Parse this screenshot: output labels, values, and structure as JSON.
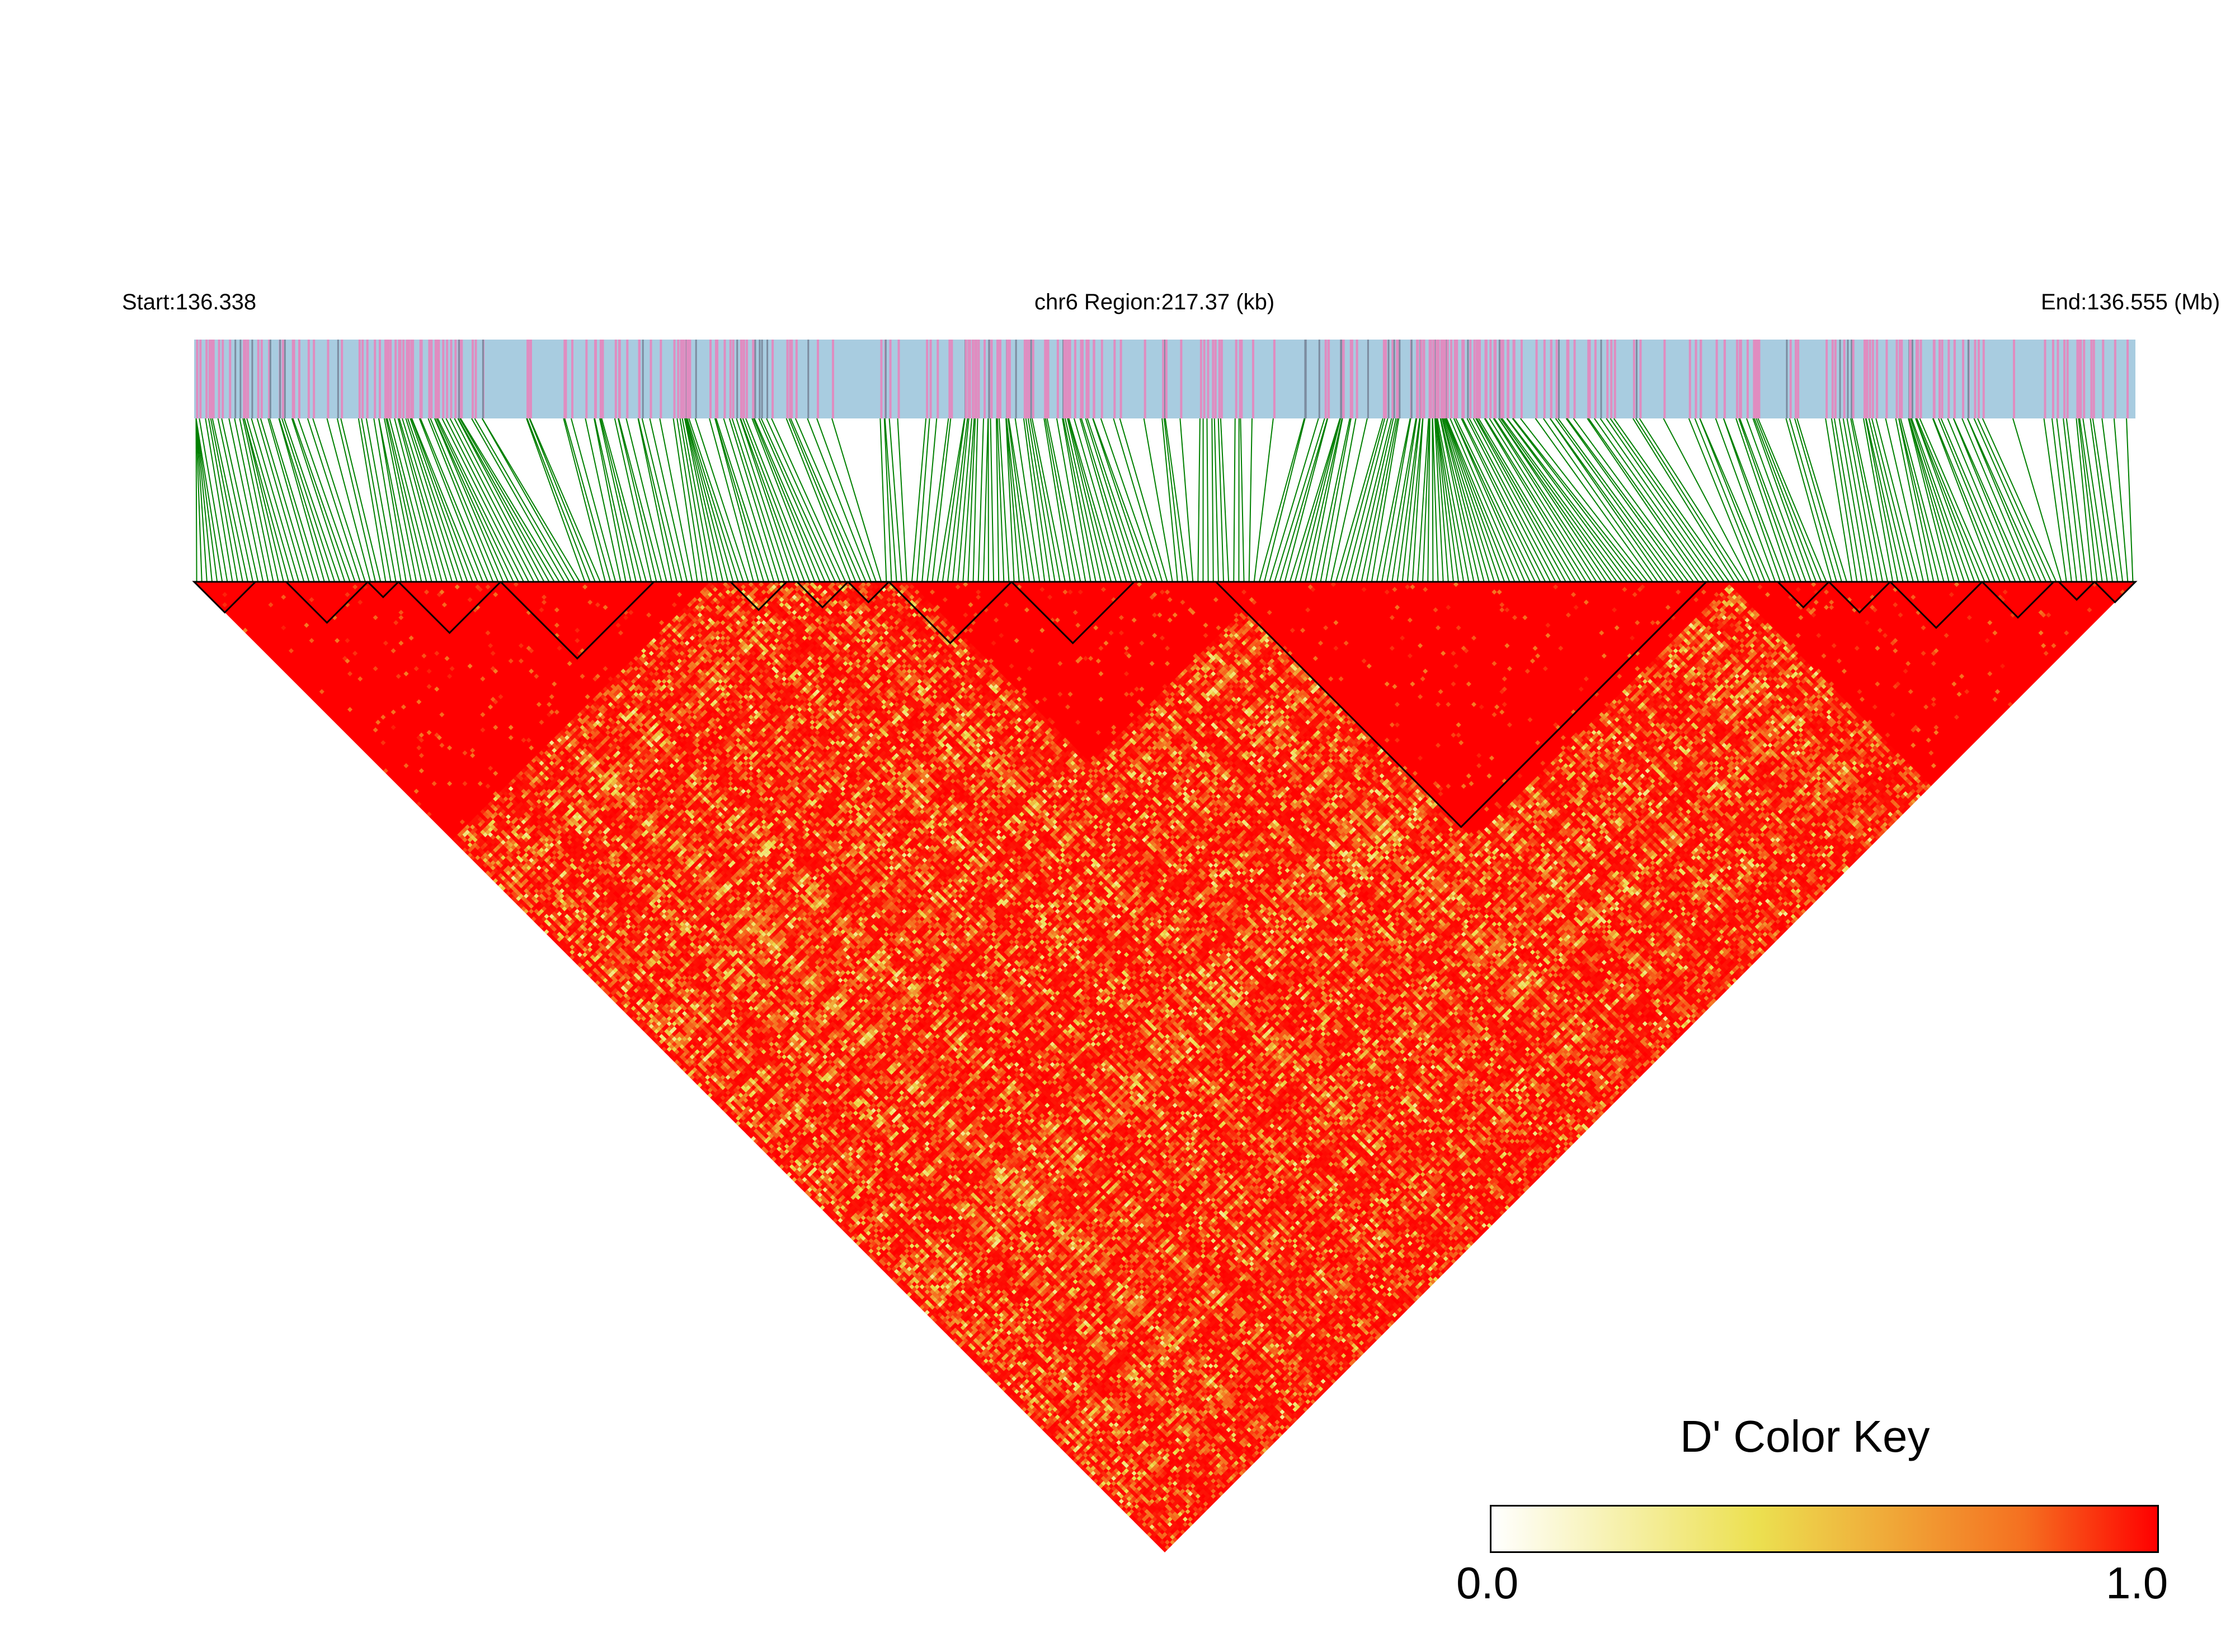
{
  "chart_data": {
    "type": "heatmap",
    "title": "",
    "chromosome": "chr6",
    "start_label": "Start:136.338",
    "region_label": "chr6 Region:217.37 (kb)",
    "end_label": "End:136.555 (Mb)",
    "start_mb": 136.338,
    "end_mb": 136.555,
    "region_kb": 217.37,
    "n_snps": 380,
    "value_label": "D'",
    "color_key": {
      "title": "D' Color Key",
      "min_label": "0.0",
      "max_label": "1.0",
      "range": [
        0.0,
        1.0
      ],
      "stops": [
        "#ffffff",
        "#f6f0a8",
        "#ece050",
        "#f0a838",
        "#f57020",
        "#ff0000"
      ]
    },
    "colors": {
      "snp_bar_base": "#a8cce0",
      "snp_marker": "#e08cc0",
      "snp_marker_dark": "#7c8ca0",
      "connector_line": "#008000",
      "high_ld": "#ff0000",
      "block_outline": "#000000"
    },
    "ld_blocks_snp_index_ranges": [
      [
        0,
        12
      ],
      [
        18,
        34
      ],
      [
        34,
        40
      ],
      [
        40,
        60
      ],
      [
        60,
        90
      ],
      [
        105,
        116
      ],
      [
        118,
        128
      ],
      [
        128,
        136
      ],
      [
        136,
        160
      ],
      [
        160,
        184
      ],
      [
        200,
        296
      ],
      [
        310,
        320
      ],
      [
        320,
        332
      ],
      [
        332,
        350
      ],
      [
        350,
        364
      ],
      [
        365,
        372
      ],
      [
        372,
        380
      ]
    ],
    "high_ld_regions_snp_index_ranges": [
      [
        0,
        100
      ],
      [
        140,
        210
      ],
      [
        200,
        300
      ],
      [
        300,
        380
      ]
    ]
  }
}
